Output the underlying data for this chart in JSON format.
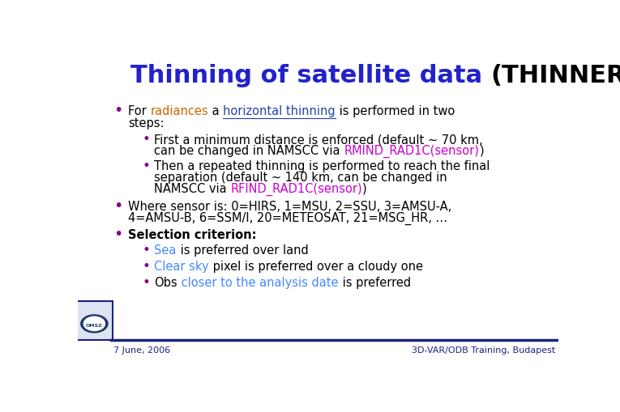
{
  "title_part1": "Thinning of satellite data ",
  "title_part2": "(THINNER)",
  "title_color1": "#2222cc",
  "title_color2": "#000000",
  "title_fontsize": 22,
  "bg_color": "#ffffff",
  "footer_line_color": "#1a237e",
  "footer_text_left": "7 June, 2006",
  "footer_text_right": "3D-VAR/ODB Training, Budapest",
  "footer_color": "#1a237e",
  "bullet_color": "#880088",
  "black": "#000000",
  "magenta": "#cc00cc",
  "blue": "#4488ff",
  "orange": "#cc6600",
  "dark_blue": "#1a237e",
  "underline_blue": "#2244aa",
  "body_fontsize": 10.5,
  "bullet_fs_main": 14,
  "bullet_fs_sub": 12
}
